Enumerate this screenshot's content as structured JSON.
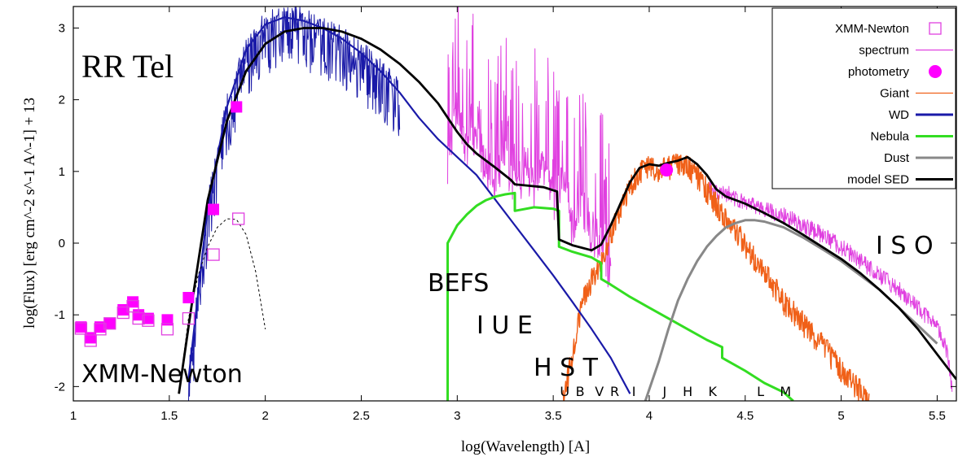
{
  "chart_data": {
    "type": "line",
    "title": "RR Tel",
    "xlabel": "log(Wavelength) [A]",
    "ylabel": "log(Flux) [erg cm^-2 s^-1 A^-1] + 13",
    "xlim": [
      1.0,
      5.6
    ],
    "ylim": [
      -2.2,
      3.3
    ],
    "x_ticks": [
      "1",
      "1.5",
      "2",
      "2.5",
      "3",
      "3.5",
      "4",
      "4.5",
      "5",
      "5.5"
    ],
    "y_ticks": [
      "-2",
      "-1",
      "0",
      "1",
      "2",
      "3"
    ],
    "grid": false,
    "legend_position": "top-right",
    "legend": [
      {
        "label": "XMM-Newton",
        "color": "#e040e0",
        "marker": "open-square"
      },
      {
        "label": "spectrum",
        "color": "#e040e0",
        "marker": "line"
      },
      {
        "label": "photometry",
        "color": "#ff00ff",
        "marker": "filled-circle"
      },
      {
        "label": "Giant",
        "color": "#f06018",
        "marker": "line"
      },
      {
        "label": "WD",
        "color": "#1a1aa8",
        "marker": "line"
      },
      {
        "label": "Nebula",
        "color": "#33dd22",
        "marker": "line"
      },
      {
        "label": "Dust",
        "color": "#888888",
        "marker": "line"
      },
      {
        "label": "model SED",
        "color": "#000000",
        "marker": "line"
      }
    ],
    "annotations": {
      "xmm": "XMM-Newton",
      "befs": "BEFS",
      "iue": "I U E",
      "hst": "H S T",
      "iso": "I S O",
      "bands": [
        "U",
        "B",
        "V",
        "R",
        "I",
        "J",
        "H",
        "K",
        "L",
        "M"
      ]
    },
    "series": [
      {
        "name": "model SED",
        "color": "#000000",
        "x": [
          1.55,
          1.62,
          1.7,
          1.8,
          1.9,
          2.0,
          2.1,
          2.2,
          2.3,
          2.4,
          2.5,
          2.6,
          2.7,
          2.8,
          2.9,
          3.0,
          3.05,
          3.1,
          3.2,
          3.28,
          3.3,
          3.45,
          3.52,
          3.53,
          3.6,
          3.7,
          3.75,
          3.8,
          3.85,
          3.9,
          3.95,
          4.0,
          4.05,
          4.1,
          4.15,
          4.2,
          4.25,
          4.3,
          4.35,
          4.4,
          4.45,
          4.5,
          4.6,
          4.7,
          4.8,
          4.9,
          5.0,
          5.1,
          5.2,
          5.3,
          5.4,
          5.5,
          5.6
        ],
        "y": [
          -2.1,
          -0.8,
          0.6,
          1.7,
          2.4,
          2.78,
          2.95,
          3.0,
          3.0,
          2.95,
          2.85,
          2.7,
          2.5,
          2.25,
          1.95,
          1.55,
          1.38,
          1.25,
          1.05,
          0.88,
          0.82,
          0.78,
          0.72,
          0.05,
          -0.03,
          -0.1,
          -0.02,
          0.25,
          0.55,
          0.85,
          1.05,
          1.1,
          1.08,
          1.12,
          1.15,
          1.2,
          1.1,
          0.95,
          0.75,
          0.65,
          0.6,
          0.55,
          0.42,
          0.28,
          0.12,
          -0.05,
          -0.22,
          -0.42,
          -0.65,
          -0.9,
          -1.2,
          -1.55,
          -1.9
        ]
      },
      {
        "name": "WD",
        "color": "#1a1aa8",
        "x": [
          1.6,
          1.7,
          1.8,
          1.9,
          2.0,
          2.1,
          2.2,
          2.3,
          2.4,
          2.5,
          2.6,
          2.7,
          2.8,
          2.9,
          3.0,
          3.1,
          3.2,
          3.3,
          3.4,
          3.5,
          3.6,
          3.7,
          3.8,
          3.9
        ],
        "y": [
          -1.9,
          0.5,
          1.9,
          2.7,
          3.05,
          3.15,
          3.1,
          3.0,
          2.85,
          2.65,
          2.4,
          2.1,
          1.75,
          1.45,
          1.2,
          0.95,
          0.6,
          0.25,
          -0.1,
          -0.45,
          -0.82,
          -1.2,
          -1.6,
          -2.1
        ]
      },
      {
        "name": "Nebula",
        "color": "#33dd22",
        "x": [
          2.95,
          2.95,
          2.97,
          3.0,
          3.05,
          3.1,
          3.15,
          3.2,
          3.25,
          3.3,
          3.3,
          3.4,
          3.5,
          3.53,
          3.53,
          3.6,
          3.7,
          3.75,
          3.75,
          3.8,
          3.9,
          4.0,
          4.1,
          4.2,
          4.3,
          4.38,
          4.38,
          4.5,
          4.6,
          4.7,
          4.75
        ],
        "y": [
          -2.2,
          0.0,
          0.1,
          0.25,
          0.4,
          0.52,
          0.6,
          0.65,
          0.68,
          0.7,
          0.45,
          0.5,
          0.48,
          0.45,
          -0.05,
          -0.12,
          -0.2,
          -0.28,
          -0.5,
          -0.58,
          -0.75,
          -0.9,
          -1.05,
          -1.2,
          -1.35,
          -1.45,
          -1.6,
          -1.78,
          -1.95,
          -2.08,
          -2.2
        ]
      },
      {
        "name": "Giant",
        "color": "#f06018",
        "x": [
          3.55,
          3.58,
          3.62,
          3.66,
          3.7,
          3.75,
          3.8,
          3.85,
          3.9,
          3.95,
          4.0,
          4.05,
          4.1,
          4.15,
          4.2,
          4.25,
          4.3,
          4.35,
          4.4,
          4.45,
          4.5,
          4.6,
          4.7,
          4.8,
          4.9,
          5.0,
          5.1,
          5.15
        ],
        "y": [
          -2.2,
          -1.8,
          -1.2,
          -0.75,
          -0.5,
          -0.3,
          0.1,
          0.5,
          0.8,
          1.0,
          1.08,
          1.05,
          1.08,
          1.1,
          1.1,
          0.95,
          0.75,
          0.55,
          0.35,
          0.2,
          0.0,
          -0.4,
          -0.8,
          -1.1,
          -1.4,
          -1.75,
          -2.05,
          -2.2
        ]
      },
      {
        "name": "Dust",
        "color": "#888888",
        "x": [
          3.98,
          4.05,
          4.1,
          4.15,
          4.2,
          4.25,
          4.3,
          4.35,
          4.4,
          4.45,
          4.5,
          4.55,
          4.6,
          4.7,
          4.8,
          4.9,
          5.0,
          5.1,
          5.2,
          5.3,
          5.4,
          5.5
        ],
        "y": [
          -2.2,
          -1.65,
          -1.2,
          -0.8,
          -0.5,
          -0.25,
          -0.05,
          0.1,
          0.22,
          0.28,
          0.32,
          0.32,
          0.3,
          0.22,
          0.08,
          -0.08,
          -0.25,
          -0.45,
          -0.65,
          -0.9,
          -1.15,
          -1.4
        ]
      },
      {
        "name": "spectrum",
        "color": "#e040e0",
        "x": [
          2.95,
          3.0,
          3.05,
          3.1,
          3.15,
          3.2,
          3.25,
          3.3,
          3.35,
          3.4,
          3.45,
          3.5,
          3.55,
          3.6,
          3.65,
          3.7,
          3.75,
          3.8,
          4.3,
          4.4,
          4.5,
          4.6,
          4.7,
          4.8,
          4.9,
          5.0,
          5.1,
          5.2,
          5.3,
          5.4,
          5.5,
          5.55,
          5.58
        ],
        "y": [
          1.4,
          2.2,
          1.5,
          1.8,
          1.3,
          1.2,
          1.5,
          1.0,
          1.3,
          1.1,
          1.4,
          0.9,
          1.1,
          0.5,
          0.9,
          0.3,
          0.4,
          -0.2,
          0.75,
          0.7,
          0.55,
          0.48,
          0.38,
          0.25,
          0.12,
          -0.05,
          -0.25,
          -0.45,
          -0.65,
          -0.9,
          -1.15,
          -1.5,
          -2.1
        ]
      }
    ],
    "photometry": {
      "color": "#ff00ff",
      "x": [
        1.04,
        1.09,
        1.14,
        1.19,
        1.26,
        1.31,
        1.34,
        1.39,
        1.49,
        1.6,
        1.73,
        1.85,
        4.09
      ],
      "y": [
        -1.17,
        -1.32,
        -1.17,
        -1.12,
        -0.93,
        -0.82,
        -1.0,
        -1.05,
        -1.07,
        -0.76,
        0.47,
        1.9,
        1.02
      ]
    },
    "xmm_points": {
      "color": "#e040e0",
      "x": [
        1.04,
        1.09,
        1.14,
        1.19,
        1.26,
        1.31,
        1.34,
        1.39,
        1.49,
        1.6,
        1.73,
        1.86
      ],
      "y": [
        -1.19,
        -1.36,
        -1.2,
        -1.12,
        -0.97,
        -0.88,
        -1.05,
        -1.08,
        -1.2,
        -1.05,
        -0.16,
        0.34
      ]
    },
    "xmm_fit": {
      "color": "#000000",
      "x": [
        1.55,
        1.6,
        1.65,
        1.7,
        1.75,
        1.8,
        1.85,
        1.9,
        1.95,
        2.0
      ],
      "y": [
        -2.1,
        -1.05,
        -0.45,
        -0.05,
        0.22,
        0.34,
        0.33,
        0.12,
        -0.4,
        -1.2
      ]
    }
  }
}
